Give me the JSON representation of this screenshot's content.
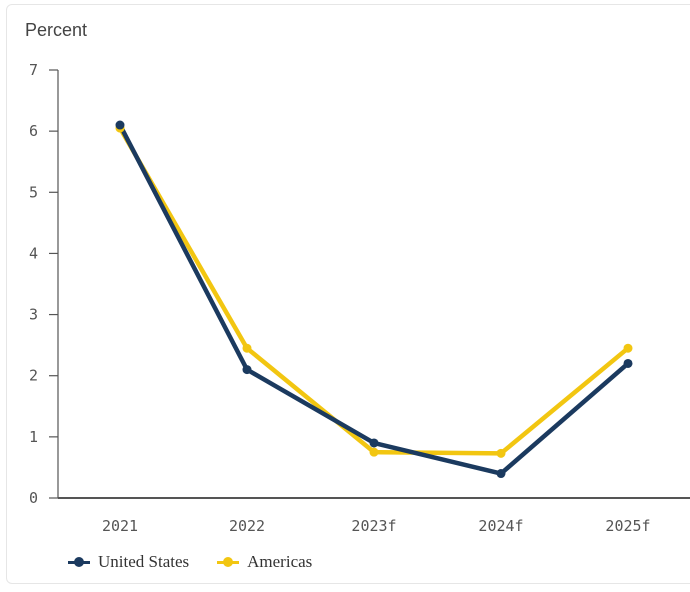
{
  "chart_data": {
    "type": "line",
    "title": "Percent",
    "categories": [
      "2021",
      "2022",
      "2023f",
      "2024f",
      "2025f"
    ],
    "ylim": [
      0,
      7
    ],
    "yticks": [
      "0",
      "1",
      "2",
      "3",
      "4",
      "5",
      "6",
      "7"
    ],
    "grid": false,
    "legend_position": "bottom-left",
    "series": [
      {
        "name": "United States",
        "color": "#1b3a5f",
        "values": [
          6.1,
          2.1,
          0.9,
          0.4,
          2.2
        ]
      },
      {
        "name": "Americas",
        "color": "#f2c611",
        "values": [
          6.05,
          2.45,
          0.75,
          0.73,
          2.45
        ]
      }
    ]
  }
}
